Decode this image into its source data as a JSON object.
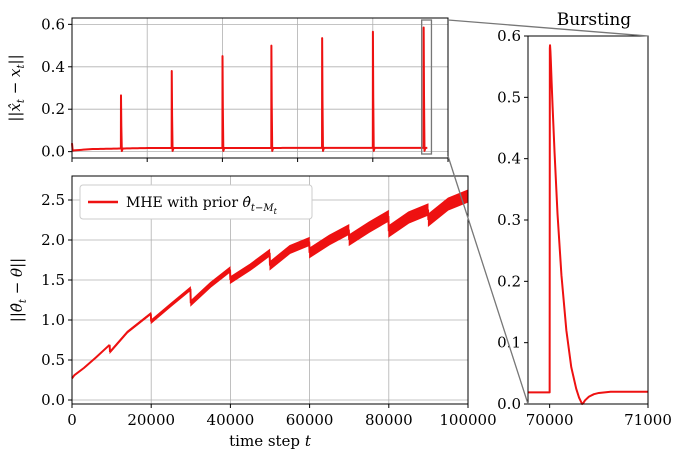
{
  "chart_data": [
    {
      "type": "line",
      "ylabel": "||x̂_t − x_t||",
      "xlim": [
        0,
        100000
      ],
      "ylim": [
        -0.03,
        0.63
      ],
      "yticks": [
        0.0,
        0.2,
        0.4,
        0.6
      ],
      "ytick_labels": [
        "0.0",
        "0.2",
        "0.4",
        "0.6"
      ],
      "grid": true,
      "series": [
        {
          "color": "#ee1111",
          "baseline": [
            [
              0,
              0.005
            ],
            [
              5000,
              0.012
            ],
            [
              20000,
              0.017
            ],
            [
              100000,
              0.018
            ]
          ],
          "spikes": [
            {
              "x": 13000,
              "y": 0.265
            },
            {
              "x": 26500,
              "y": 0.38
            },
            {
              "x": 40000,
              "y": 0.45
            },
            {
              "x": 53000,
              "y": 0.5
            },
            {
              "x": 66500,
              "y": 0.535
            },
            {
              "x": 80000,
              "y": 0.565
            },
            {
              "x": 93500,
              "y": 0.585
            }
          ]
        }
      ]
    },
    {
      "type": "line",
      "xlabel": "time step t",
      "ylabel": "||θ̂_t − θ||",
      "xlim": [
        0,
        100000
      ],
      "ylim": [
        -0.05,
        2.8
      ],
      "xticks": [
        0,
        20000,
        40000,
        60000,
        80000,
        100000
      ],
      "xtick_labels": [
        "0",
        "20000",
        "40000",
        "60000",
        "80000",
        "100000"
      ],
      "yticks": [
        0.0,
        0.5,
        1.0,
        1.5,
        2.0,
        2.5
      ],
      "ytick_labels": [
        "0.0",
        "0.5",
        "1.0",
        "1.5",
        "2.0",
        "2.5"
      ],
      "grid": true,
      "legend": {
        "position": "top-left",
        "entries": [
          "MHE with prior θ̂_{t−M_t}"
        ]
      },
      "series": [
        {
          "name": "MHE with prior θ̂_{t−M_t}",
          "color": "#ee1111",
          "segments": [
            {
              "x": [
                0,
                600,
                3000,
                6000,
                9500
              ],
              "y": [
                0.27,
                0.31,
                0.4,
                0.53,
                0.69
              ],
              "band": 0.0
            },
            {
              "x": [
                9600,
                14000,
                19900
              ],
              "y": [
                0.6,
                0.85,
                1.08
              ],
              "band": 0.02
            },
            {
              "x": [
                20000,
                25000,
                29900
              ],
              "y": [
                0.98,
                1.19,
                1.39
              ],
              "band": 0.04
            },
            {
              "x": [
                30000,
                35000,
                39900
              ],
              "y": [
                1.21,
                1.44,
                1.63
              ],
              "band": 0.06
            },
            {
              "x": [
                40000,
                45000,
                49900
              ],
              "y": [
                1.5,
                1.66,
                1.84
              ],
              "band": 0.08
            },
            {
              "x": [
                50000,
                55000,
                59900
              ],
              "y": [
                1.68,
                1.88,
                1.98
              ],
              "band": 0.1
            },
            {
              "x": [
                60000,
                65000,
                69900
              ],
              "y": [
                1.84,
                2.0,
                2.13
              ],
              "band": 0.12
            },
            {
              "x": [
                70000,
                75000,
                79900
              ],
              "y": [
                2.0,
                2.16,
                2.3
              ],
              "band": 0.13
            },
            {
              "x": [
                80000,
                85000,
                89900
              ],
              "y": [
                2.11,
                2.28,
                2.38
              ],
              "band": 0.14
            },
            {
              "x": [
                90000,
                95000,
                100000
              ],
              "y": [
                2.25,
                2.45,
                2.55
              ],
              "band": 0.15
            }
          ]
        }
      ]
    },
    {
      "type": "line",
      "title": "Bursting",
      "xlim": [
        69780,
        71000
      ],
      "ylim": [
        0,
        0.6
      ],
      "xticks": [
        70000,
        71000
      ],
      "xtick_labels": [
        "70000",
        "71000"
      ],
      "yticks": [
        0.0,
        0.1,
        0.2,
        0.3,
        0.4,
        0.5,
        0.6
      ],
      "ytick_labels": [
        "0.0",
        "0.1",
        "0.2",
        "0.3",
        "0.4",
        "0.5",
        "0.6"
      ],
      "grid": false,
      "series": [
        {
          "color": "#ee1111",
          "x": [
            69780,
            69995,
            70000,
            70002,
            70004,
            70008,
            70012,
            70020,
            70030,
            70050,
            70080,
            70120,
            70170,
            70220,
            70270,
            70300,
            70330,
            70340,
            70360,
            70400,
            70450,
            70500,
            70560,
            70620,
            70680,
            70750,
            70850,
            71000
          ],
          "y": [
            0.019,
            0.019,
            0.019,
            0.58,
            0.585,
            0.575,
            0.56,
            0.525,
            0.485,
            0.41,
            0.31,
            0.21,
            0.12,
            0.06,
            0.025,
            0.01,
            0.0,
            0.001,
            0.006,
            0.012,
            0.016,
            0.018,
            0.019,
            0.02,
            0.02,
            0.02,
            0.02,
            0.02
          ]
        }
      ]
    }
  ]
}
